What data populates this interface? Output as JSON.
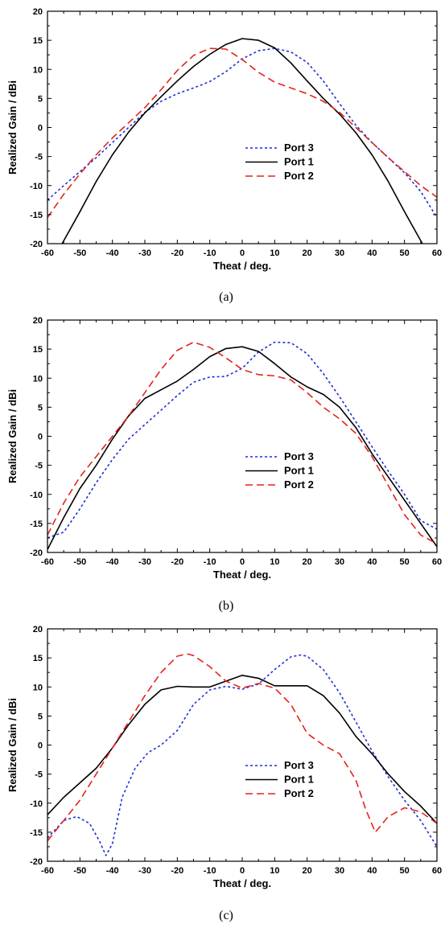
{
  "chart_data": [
    {
      "type": "line",
      "caption": "(a)",
      "xlabel": "Theat / deg.",
      "ylabel": "Realized Gain / dBi",
      "xlim": [
        -60,
        60
      ],
      "ylim": [
        -20,
        20
      ],
      "xticks": [
        -60,
        -50,
        -40,
        -30,
        -20,
        -10,
        0,
        10,
        20,
        30,
        40,
        50,
        60
      ],
      "yticks": [
        -20,
        -15,
        -10,
        -5,
        0,
        5,
        10,
        15,
        20
      ],
      "grid": false,
      "legend": "center-right",
      "series": [
        {
          "name": "Port 3",
          "color": "#1f2fd6",
          "dash": "dotted",
          "x": [
            -60,
            -55,
            -50,
            -45,
            -40,
            -35,
            -30,
            -25,
            -20,
            -15,
            -10,
            -5,
            0,
            5,
            10,
            15,
            20,
            25,
            30,
            35,
            40,
            45,
            50,
            55,
            60
          ],
          "y": [
            -12.5,
            -10,
            -7.6,
            -5.2,
            -2.6,
            0,
            2.6,
            4.5,
            5.8,
            6.8,
            7.9,
            9.6,
            11.8,
            13.2,
            13.6,
            13,
            11.2,
            8,
            4.1,
            0.4,
            -2.6,
            -5.2,
            -7.8,
            -11,
            -15.5
          ]
        },
        {
          "name": "Port 1",
          "color": "#000000",
          "dash": "solid",
          "x": [
            -55.5,
            -50,
            -45,
            -40,
            -35,
            -30,
            -25,
            -20,
            -15,
            -10,
            -5,
            0,
            5,
            10,
            15,
            20,
            25,
            30,
            35,
            40,
            45,
            50,
            55.5
          ],
          "y": [
            -20,
            -14.5,
            -9.3,
            -4.7,
            -0.8,
            2.5,
            5.3,
            8,
            10.5,
            12.6,
            14.3,
            15.3,
            15,
            13.7,
            11.1,
            8,
            5,
            2.3,
            -0.9,
            -4.7,
            -9.3,
            -14.5,
            -20
          ]
        },
        {
          "name": "Port 2",
          "color": "#e3241b",
          "dash": "dashed",
          "x": [
            -60,
            -55,
            -50,
            -45,
            -40,
            -35,
            -30,
            -25,
            -20,
            -15,
            -10,
            -5,
            0,
            5,
            10,
            15,
            20,
            25,
            30,
            35,
            40,
            45,
            50,
            55,
            60
          ],
          "y": [
            -15.5,
            -11.5,
            -8,
            -4.7,
            -1.8,
            0.8,
            3.4,
            6.5,
            9.8,
            12.4,
            13.6,
            13.5,
            11.7,
            9.5,
            7.8,
            6.8,
            5.8,
            4.5,
            2.6,
            0,
            -2.6,
            -5.2,
            -7.6,
            -10,
            -12
          ]
        }
      ]
    },
    {
      "type": "line",
      "caption": "(b)",
      "xlabel": "Theat / deg.",
      "ylabel": "Realized Gain / dBi",
      "xlim": [
        -60,
        60
      ],
      "ylim": [
        -20,
        20
      ],
      "xticks": [
        -60,
        -50,
        -40,
        -30,
        -20,
        -10,
        0,
        10,
        20,
        30,
        40,
        50,
        60
      ],
      "yticks": [
        -20,
        -15,
        -10,
        -5,
        0,
        5,
        10,
        15,
        20
      ],
      "grid": false,
      "legend": "center-right",
      "series": [
        {
          "name": "Port 3",
          "color": "#1f2fd6",
          "dash": "dotted",
          "x": [
            -60,
            -55,
            -50,
            -45,
            -40,
            -35,
            -30,
            -25,
            -20,
            -15,
            -10,
            -5,
            0,
            5,
            10,
            15,
            20,
            25,
            30,
            35,
            40,
            45,
            50,
            55,
            60
          ],
          "y": [
            -17.5,
            -16.5,
            -12.5,
            -8,
            -4,
            -0.5,
            2,
            4.5,
            7,
            9.3,
            10.2,
            10.3,
            11.7,
            14.5,
            16.2,
            16.1,
            14.2,
            10.8,
            6.8,
            2.5,
            -1.8,
            -6,
            -10,
            -14.5,
            -16
          ]
        },
        {
          "name": "Port 1",
          "color": "#000000",
          "dash": "solid",
          "x": [
            -60,
            -55,
            -50,
            -45,
            -40,
            -35,
            -30,
            -25,
            -20,
            -15,
            -10,
            -5,
            0,
            5,
            10,
            15,
            20,
            25,
            30,
            35,
            40,
            45,
            50,
            55,
            60
          ],
          "y": [
            -19.5,
            -14,
            -9,
            -5,
            -0.5,
            3.5,
            6.5,
            8,
            9.5,
            11.5,
            13.7,
            15.1,
            15.4,
            14.6,
            12.5,
            10.2,
            8.5,
            7.2,
            5,
            1.5,
            -3,
            -7,
            -11,
            -15,
            -19
          ]
        },
        {
          "name": "Port 2",
          "color": "#e3241b",
          "dash": "dashed",
          "x": [
            -60,
            -55,
            -50,
            -45,
            -40,
            -35,
            -30,
            -25,
            -20,
            -15,
            -10,
            -5,
            0,
            5,
            10,
            15,
            20,
            25,
            30,
            35,
            40,
            45,
            50,
            55,
            60
          ],
          "y": [
            -17,
            -11.5,
            -7,
            -3.5,
            0,
            3.5,
            7.5,
            11.5,
            14.8,
            16.2,
            15.3,
            13.5,
            11.5,
            10.6,
            10.4,
            9.7,
            7.5,
            5,
            3,
            0.5,
            -3.5,
            -8.5,
            -13.5,
            -17,
            -18.5
          ]
        }
      ]
    },
    {
      "type": "line",
      "caption": "(c)",
      "xlabel": "Theat / deg.",
      "ylabel": "Realized Gain / dBi",
      "xlim": [
        -60,
        60
      ],
      "ylim": [
        -20,
        20
      ],
      "xticks": [
        -60,
        -50,
        -40,
        -30,
        -20,
        -10,
        0,
        10,
        20,
        30,
        40,
        50,
        60
      ],
      "yticks": [
        -20,
        -15,
        -10,
        -5,
        0,
        5,
        10,
        15,
        20
      ],
      "grid": false,
      "legend": "center-right",
      "series": [
        {
          "name": "Port 3",
          "color": "#1f2fd6",
          "dash": "dotted",
          "x": [
            -60,
            -55,
            -51,
            -47,
            -44,
            -42,
            -40,
            -37,
            -33,
            -29,
            -25,
            -20,
            -15,
            -10,
            -5,
            0,
            5,
            10,
            15,
            18,
            20,
            25,
            30,
            35,
            40,
            45,
            50,
            55,
            60
          ],
          "y": [
            -16,
            -13,
            -12.3,
            -13.5,
            -16.5,
            -19,
            -17,
            -9,
            -4,
            -1.3,
            0,
            2.5,
            7,
            9.5,
            10.1,
            9.6,
            10.5,
            13,
            15.2,
            15.5,
            15.3,
            13,
            9,
            4,
            -1,
            -5.5,
            -9.5,
            -13,
            -17.5
          ]
        },
        {
          "name": "Port 1",
          "color": "#000000",
          "dash": "solid",
          "x": [
            -60,
            -55,
            -50,
            -45,
            -40,
            -35,
            -30,
            -25,
            -20,
            -15,
            -10,
            -5,
            0,
            5,
            10,
            15,
            20,
            25,
            30,
            35,
            40,
            45,
            50,
            55,
            60
          ],
          "y": [
            -12,
            -9,
            -6.5,
            -4,
            -0.5,
            3.5,
            7,
            9.5,
            10.1,
            10,
            10,
            11,
            12,
            11.5,
            10.2,
            10.2,
            10.2,
            8.5,
            5.5,
            1.5,
            -1.5,
            -5,
            -8,
            -10.5,
            -13.5
          ]
        },
        {
          "name": "Port 2",
          "color": "#e3241b",
          "dash": "dashed",
          "x": [
            -60,
            -55,
            -50,
            -45,
            -40,
            -35,
            -30,
            -25,
            -20,
            -17,
            -15,
            -10,
            -5,
            0,
            5,
            10,
            15,
            20,
            25,
            30,
            35,
            38,
            41,
            45,
            50,
            55,
            60
          ],
          "y": [
            -16.5,
            -13,
            -9.5,
            -5,
            -0.5,
            4,
            8.5,
            12.5,
            15.3,
            15.7,
            15.4,
            13.5,
            11,
            9.8,
            10.6,
            9.8,
            7,
            2,
            0,
            -1.5,
            -6,
            -11,
            -15,
            -12.3,
            -10.8,
            -11.5,
            -13.5
          ]
        }
      ]
    }
  ]
}
